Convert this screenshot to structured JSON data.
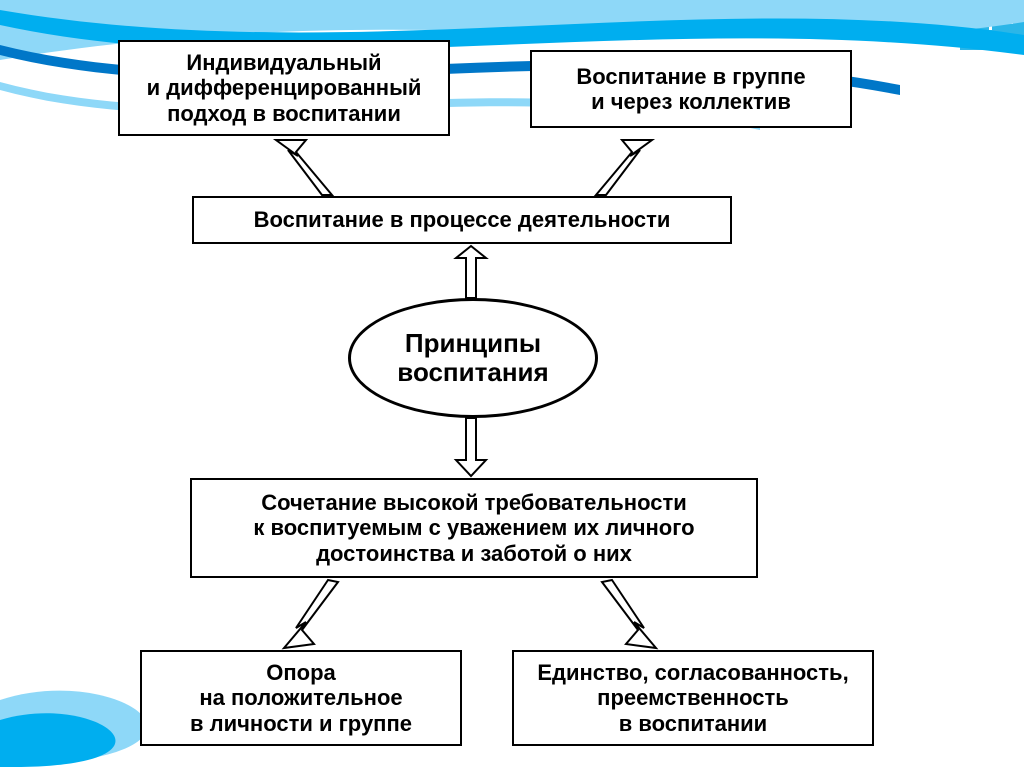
{
  "diagram": {
    "type": "flowchart",
    "background_color": "#ffffff",
    "border_color": "#000000",
    "font_family": "Arial",
    "nodes": {
      "top_left": {
        "text": "Индивидуальный\nи дифференцированный\nподход в воспитании",
        "fontsize": 22
      },
      "top_right": {
        "text": "Воспитание в группе\nи через коллектив",
        "fontsize": 22
      },
      "mid_upper": {
        "text": "Воспитание в процессе деятельности",
        "fontsize": 22
      },
      "center": {
        "text": "Принципы\nвоспитания",
        "fontsize": 26
      },
      "mid_lower": {
        "text": "Сочетание высокой требовательности\nк воспитуемым с уважением их личного\nдостоинства и заботой о них",
        "fontsize": 22
      },
      "bot_left": {
        "text": "Опора\nна положительное\nв личности и группе",
        "fontsize": 22
      },
      "bot_right": {
        "text": "Единство, согласованность,\nпреемственность\nв воспитании",
        "fontsize": 22
      }
    },
    "arrow_stroke": "#000000",
    "arrow_stroke_width": 2
  },
  "decor": {
    "wave_colors": [
      "#00aeef",
      "#0077c8",
      "#8ed8f8",
      "#ffffff"
    ],
    "corner_accent": "#2bb6e8"
  }
}
